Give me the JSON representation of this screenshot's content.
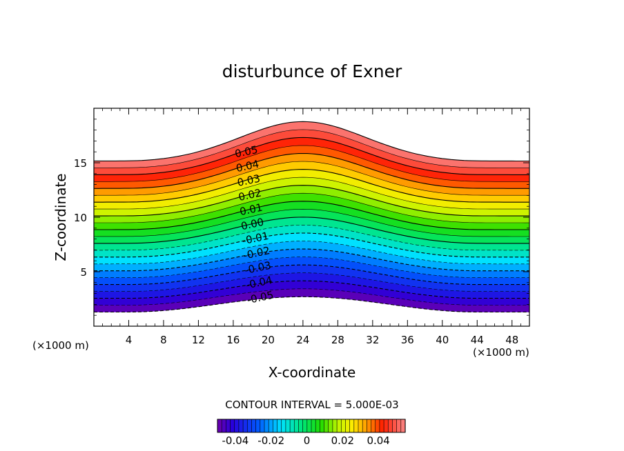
{
  "chart_data": {
    "type": "contour",
    "title": "disturbunce of Exner",
    "xlabel": "X-coordinate",
    "ylabel": "Z-coordinate",
    "x_unit": "(×1000 m)",
    "x_unit_right": "(×1000 m)",
    "xlim": [
      0,
      50
    ],
    "ylim": [
      0,
      20
    ],
    "x_ticks": [
      "4",
      "8",
      "12",
      "16",
      "20",
      "24",
      "28",
      "32",
      "36",
      "40",
      "44",
      "48"
    ],
    "x_tick_values": [
      4,
      8,
      12,
      16,
      20,
      24,
      28,
      32,
      36,
      40,
      44,
      48
    ],
    "y_ticks": [
      "5",
      "10",
      "15"
    ],
    "y_tick_values": [
      5,
      10,
      15
    ],
    "terrain": {
      "base": 1.3,
      "amplitude": 1.4,
      "center": 24,
      "half_width": 20
    },
    "contour_levels": {
      "min": -0.05,
      "max": 0.06,
      "interval": 0.005
    },
    "contour_labels": [
      "0.05",
      "0.04",
      "0.03",
      "0.02",
      "0.01",
      "0.00",
      "-0.01",
      "-0.02",
      "-0.03",
      "-0.04",
      "-0.05"
    ],
    "contour_label_values": [
      0.05,
      0.04,
      0.03,
      0.02,
      0.01,
      0.0,
      -0.01,
      -0.02,
      -0.03,
      -0.04,
      -0.05
    ],
    "interval_text": "CONTOUR INTERVAL = 5.000E-03",
    "colorbar": {
      "ticks": [
        "-0.04",
        "-0.02",
        "0",
        "0.02",
        "0.04"
      ],
      "tick_values": [
        -0.04,
        -0.02,
        0,
        0.02,
        0.04
      ],
      "min": -0.05,
      "max": 0.055
    }
  }
}
